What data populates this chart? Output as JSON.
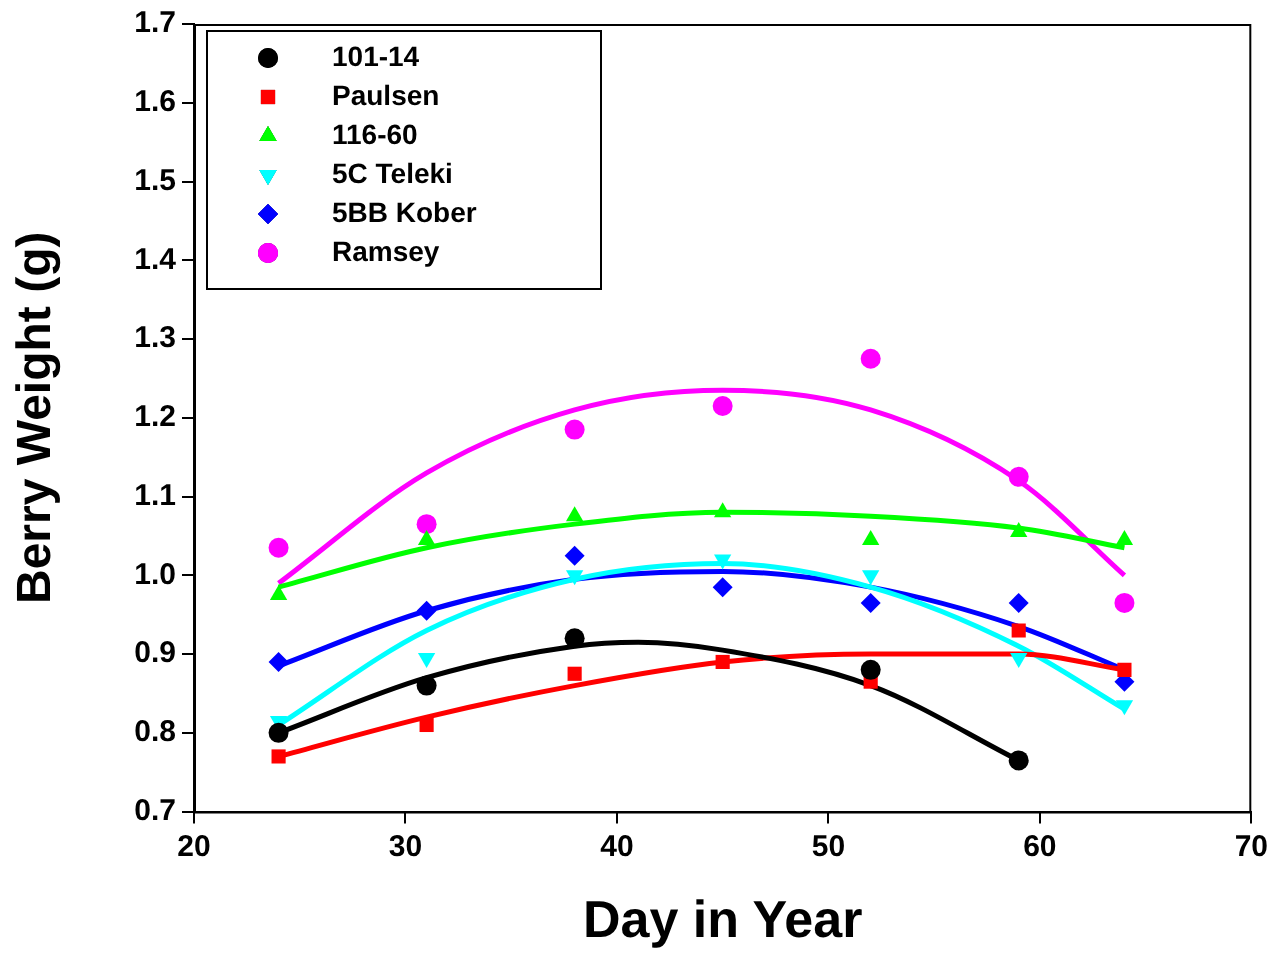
{
  "chart_data": {
    "type": "scatter",
    "xlabel": "Day in Year",
    "ylabel": "Berry Weight (g)",
    "xlim": [
      20,
      70
    ],
    "xticks": [
      20,
      30,
      40,
      50,
      60,
      70
    ],
    "ylim": [
      0.7,
      1.7
    ],
    "yticks": [
      0.7,
      0.8,
      0.9,
      {
        "value": 1,
        "label": "1.0"
      },
      1.1,
      1.2,
      1.3,
      1.4,
      1.5,
      1.6,
      1.7
    ],
    "grid": false,
    "legend": "top left",
    "x": [
      24,
      31,
      38,
      45,
      52,
      59,
      64
    ],
    "series": [
      {
        "name": "101-14",
        "color": "#000000",
        "marker": "circle",
        "values": [
          0.8,
          0.86,
          0.92,
          null,
          0.88,
          0.765,
          null
        ]
      },
      {
        "name": "Paulsen",
        "color": "#ff0000",
        "marker": "square",
        "values": [
          0.77,
          0.81,
          0.875,
          0.89,
          0.865,
          0.93,
          0.88
        ]
      },
      {
        "name": "116-60",
        "color": "#00ff00",
        "marker": "triangle",
        "values": [
          0.975,
          1.045,
          1.075,
          1.08,
          1.045,
          1.055,
          1.045
        ]
      },
      {
        "name": "5C Teleki",
        "color": "#00ffff",
        "marker": "triangle-down",
        "values": [
          0.815,
          0.895,
          1.0,
          1.02,
          1.0,
          0.895,
          0.835
        ]
      },
      {
        "name": "5BB Kober",
        "color": "#0000ff",
        "marker": "diamond",
        "values": [
          0.89,
          0.955,
          1.025,
          0.985,
          0.965,
          0.965,
          0.865
        ]
      },
      {
        "name": "Ramsey",
        "color": "#ff00ff",
        "marker": "circle",
        "values": [
          1.035,
          1.065,
          1.185,
          1.215,
          1.275,
          1.125,
          0.965
        ]
      },
      {
        "type": "line",
        "color": "#000000",
        "marker": "none",
        "x": [
          24,
          31,
          38,
          41,
          45,
          52,
          59
        ],
        "values": [
          0.8,
          0.87,
          0.91,
          0.915,
          0.905,
          0.86,
          0.765
        ]
      },
      {
        "type": "line",
        "color": "#ff0000",
        "marker": "none",
        "x": [
          24,
          31,
          38,
          45,
          52,
          59,
          64
        ],
        "values": [
          0.77,
          0.82,
          0.86,
          0.89,
          0.9,
          0.9,
          0.88
        ]
      },
      {
        "type": "line",
        "color": "#00ff00",
        "marker": "none",
        "x": [
          24,
          31,
          38,
          45,
          52,
          59,
          64
        ],
        "values": [
          0.985,
          1.035,
          1.065,
          1.08,
          1.075,
          1.06,
          1.035
        ]
      },
      {
        "type": "line",
        "color": "#00ffff",
        "marker": "none",
        "x": [
          24,
          31,
          38,
          45,
          52,
          59,
          64
        ],
        "values": [
          0.81,
          0.93,
          0.995,
          1.015,
          0.985,
          0.91,
          0.83
        ]
      },
      {
        "type": "line",
        "color": "#0000ff",
        "marker": "none",
        "x": [
          24,
          31,
          38,
          45,
          52,
          59,
          64
        ],
        "values": [
          0.885,
          0.955,
          0.995,
          1.005,
          0.985,
          0.935,
          0.88
        ]
      },
      {
        "type": "line",
        "color": "#ff00ff",
        "marker": "none",
        "x": [
          24,
          31,
          38,
          45,
          52,
          59,
          64
        ],
        "values": [
          0.99,
          1.13,
          1.21,
          1.235,
          1.21,
          1.12,
          1.0
        ]
      }
    ]
  }
}
